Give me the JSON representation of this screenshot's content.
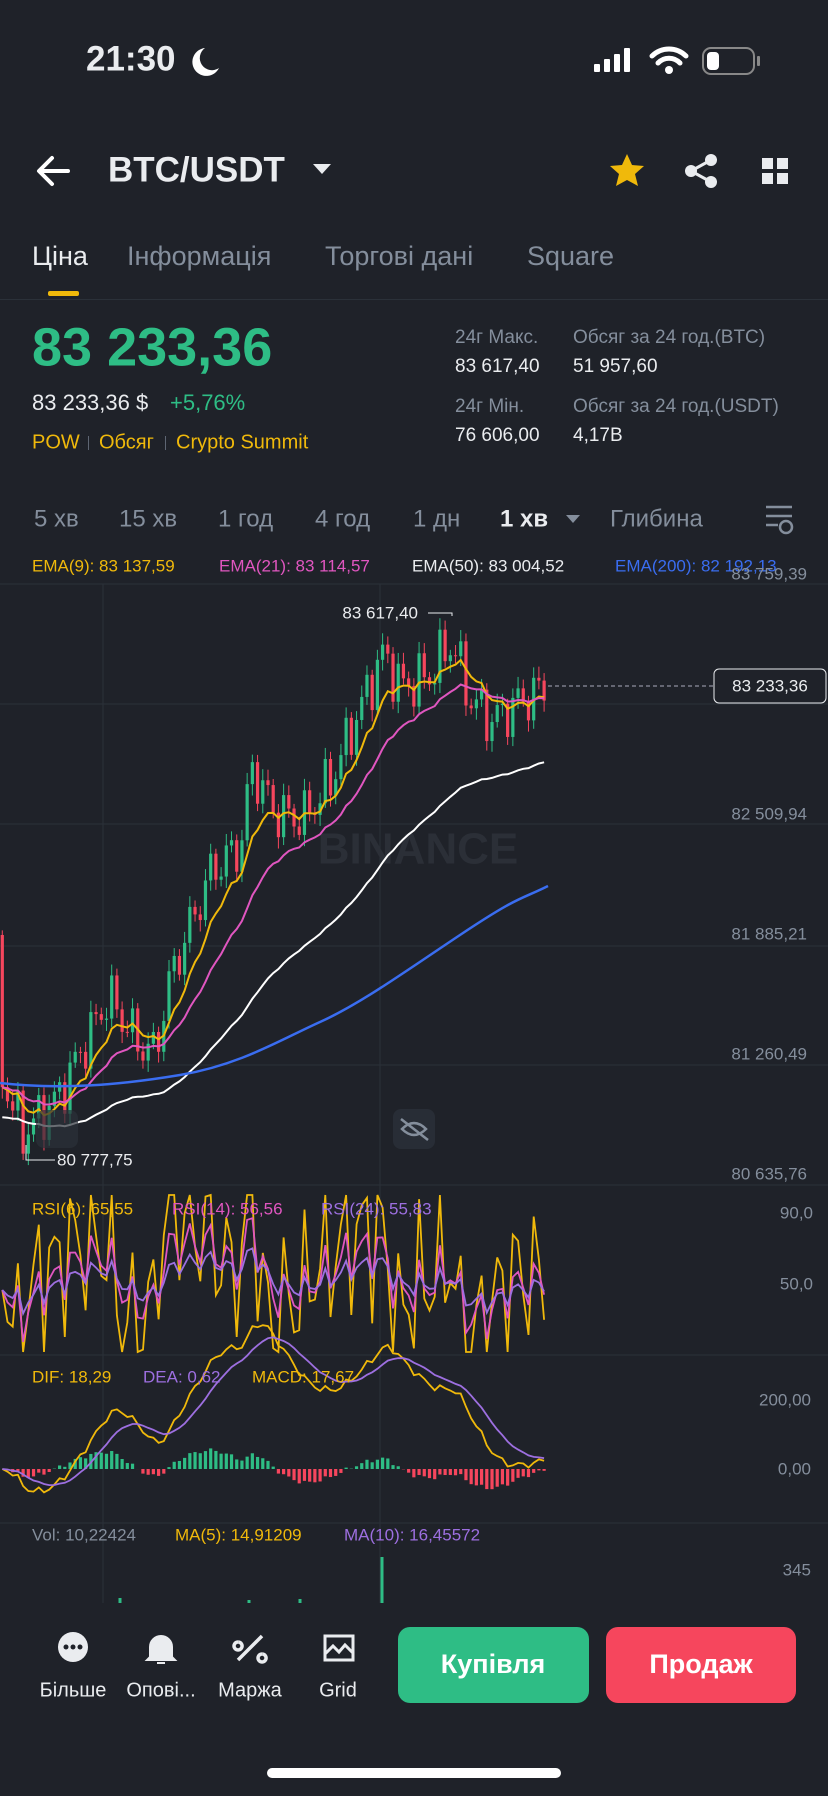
{
  "status_bar": {
    "time": "21:30"
  },
  "header": {
    "pair": "BTC/USDT"
  },
  "tabs": [
    "Ціна",
    "Інформація",
    "Торгові дані",
    "Square"
  ],
  "price": {
    "last": "83 233,36",
    "fiat": "83 233,36 $",
    "change": "+5,76%",
    "tags": [
      "POW",
      "Обсяг",
      "Crypto Summit"
    ]
  },
  "stats": [
    {
      "label": "24г Макс.",
      "value": "83 617,40"
    },
    {
      "label": "Обсяг за 24 год.(BTC)",
      "value": "51 957,60"
    },
    {
      "label": "24г Мін.",
      "value": "76 606,00"
    },
    {
      "label": "Обсяг за 24 год.(USDT)",
      "value": "4,17B"
    }
  ],
  "intervals": [
    "5 хв",
    "15 хв",
    "1 год",
    "4 год",
    "1 дн",
    "1 хв",
    "Глибина"
  ],
  "ema": [
    "EMA(9): 83 137,59",
    "EMA(21): 83 114,57",
    "EMA(50): 83 004,52",
    "EMA(200): 82 192,13"
  ],
  "price_axis": [
    "83 759,39",
    "82 509,94",
    "81 885,21",
    "81 260,49",
    "80 635,76"
  ],
  "chart_labels": {
    "high": "83 617,40",
    "low": "80 777,75",
    "current": "83 233,36",
    "watermark": "BINANCE"
  },
  "rsi": {
    "labels": [
      "RSI(6): 65,55",
      "RSI(14): 56,56",
      "RSI(24): 55,83"
    ],
    "axis": [
      "90,0",
      "50,0"
    ]
  },
  "macd": {
    "labels": [
      "DIF: 18,29",
      "DEA: 0,62",
      "MACD: 17,67"
    ],
    "axis": [
      "200,00",
      "0,00"
    ]
  },
  "volume": {
    "labels": [
      "Vol: 10,22424",
      "MA(5): 14,91209",
      "MA(10): 16,45572"
    ],
    "axis": [
      "345"
    ]
  },
  "bottom_bar": {
    "actions": [
      "Більше",
      "Опові...",
      "Маржа",
      "Grid"
    ],
    "buy": "Купівля",
    "sell": "Продаж"
  }
}
